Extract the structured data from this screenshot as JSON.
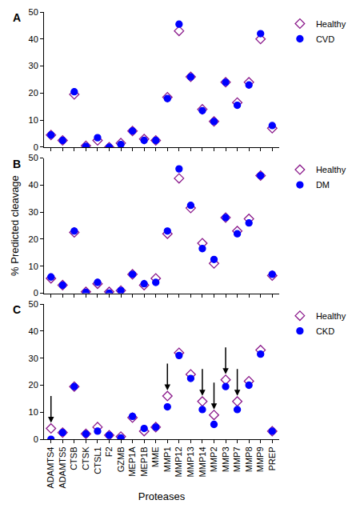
{
  "chart_data": [
    {
      "type": "scatter",
      "title": "A",
      "categories": [
        "ADAMTS4",
        "ADAMTS5",
        "CTSB",
        "CTSK",
        "CTSL1",
        "F2",
        "GZMB",
        "MEP1A",
        "MEP1B",
        "MME",
        "MMP1",
        "MMP12",
        "MMP13",
        "MMP14",
        "MMP2",
        "MMP3",
        "MMP7",
        "MMP8",
        "MMP9",
        "PREP"
      ],
      "series": [
        {
          "name": "Healthy",
          "color": "#8b1a8b",
          "marker": "diamond-open",
          "values": [
            4.5,
            2.5,
            19.5,
            0.5,
            2.5,
            0,
            1.5,
            6,
            3,
            2.5,
            18.5,
            43,
            26,
            14,
            9.5,
            24,
            16.5,
            24,
            40,
            7
          ]
        },
        {
          "name": "CVD",
          "color": "#0000ff",
          "marker": "circle",
          "values": [
            4.5,
            2.5,
            20.5,
            0.3,
            3.5,
            0,
            1,
            6,
            2.5,
            2.5,
            18,
            45.5,
            26,
            13.5,
            9.5,
            24,
            15.5,
            23,
            42,
            8
          ]
        }
      ],
      "ylim": [
        0,
        50
      ],
      "yticks": [
        0,
        10,
        20,
        30,
        40,
        50
      ],
      "tick_labels": "y",
      "legend": "right"
    },
    {
      "type": "scatter",
      "title": "B",
      "ylabel": "% Predicted cleavage",
      "categories": [
        "ADAMTS4",
        "ADAMTS5",
        "CTSB",
        "CTSK",
        "CTSL1",
        "F2",
        "GZMB",
        "MEP1A",
        "MEP1B",
        "MME",
        "MMP1",
        "MMP12",
        "MMP13",
        "MMP14",
        "MMP2",
        "MMP3",
        "MMP7",
        "MMP8",
        "MMP9",
        "PREP"
      ],
      "series": [
        {
          "name": "Healthy",
          "color": "#8b1a8b",
          "marker": "diamond-open",
          "values": [
            5.5,
            3,
            22.5,
            0.5,
            3.5,
            0.5,
            1,
            7,
            3,
            5.5,
            22,
            42.5,
            31.5,
            18.5,
            11,
            28,
            23,
            27.5,
            43.5,
            6.5
          ]
        },
        {
          "name": "DM",
          "color": "#0000ff",
          "marker": "circle",
          "values": [
            6,
            3,
            23,
            0.3,
            4,
            0,
            1,
            7,
            3.5,
            4,
            23,
            46,
            32.5,
            16.5,
            12.5,
            28,
            22,
            26,
            43.5,
            7
          ]
        }
      ],
      "ylim": [
        0,
        50
      ],
      "yticks": [
        0,
        10,
        20,
        30,
        40,
        50
      ],
      "tick_labels": "y",
      "legend": "right"
    },
    {
      "type": "scatter",
      "title": "C",
      "xlabel": "Proteases",
      "categories": [
        "ADAMTS4",
        "ADAMTS5",
        "CTSB",
        "CTSK",
        "CTSL1",
        "F2",
        "GZMB",
        "MEP1A",
        "MEP1B",
        "MME",
        "MMP1",
        "MMP12",
        "MMP13",
        "MMP14",
        "MMP2",
        "MMP3",
        "MMP7",
        "MMP8",
        "MMP9",
        "PREP"
      ],
      "series": [
        {
          "name": "Healthy",
          "color": "#8b1a8b",
          "marker": "diamond-open",
          "values": [
            4,
            2.5,
            19.5,
            2,
            4.5,
            1.5,
            1,
            8,
            3,
            4.5,
            16,
            32,
            24,
            14,
            9,
            22,
            14,
            21.5,
            33,
            3
          ]
        },
        {
          "name": "CKD",
          "color": "#0000ff",
          "marker": "circle",
          "values": [
            0,
            2.5,
            19.5,
            2,
            3,
            1.5,
            0.5,
            8.5,
            4,
            4.5,
            12,
            31,
            22.5,
            11,
            5.5,
            19.5,
            11,
            20,
            31.5,
            3
          ]
        }
      ],
      "arrows": [
        "ADAMTS4",
        "MMP1",
        "MMP14",
        "MMP2",
        "MMP3",
        "MMP7"
      ],
      "ylim": [
        0,
        50
      ],
      "yticks": [
        0,
        10,
        20,
        30,
        40,
        50
      ],
      "legend": "right"
    }
  ]
}
